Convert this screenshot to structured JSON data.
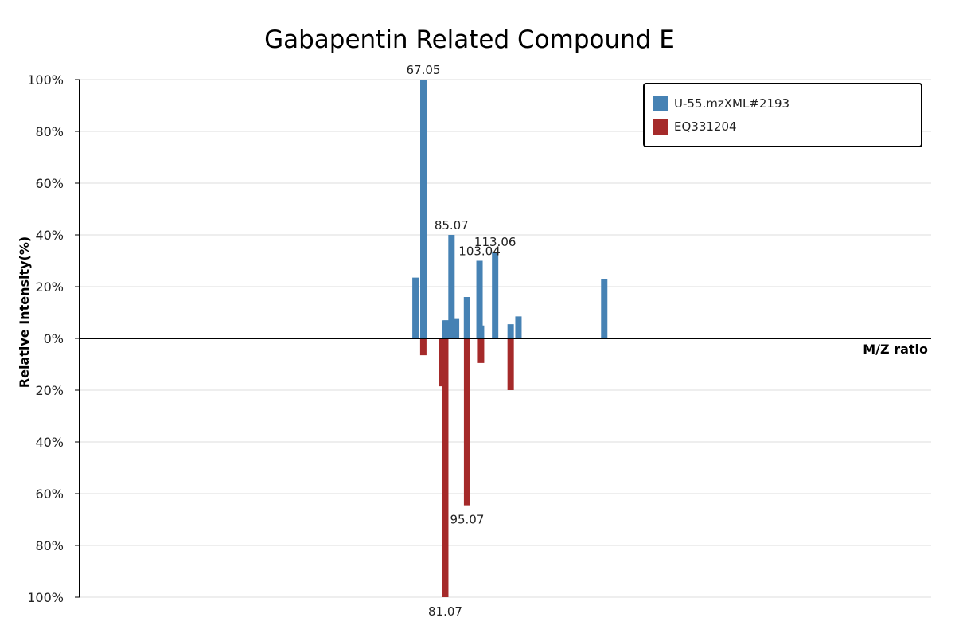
{
  "chart_data": {
    "type": "bar",
    "title": "Gabapentin Related Compound E",
    "xlabel": "M/Z ratio",
    "ylabel": "Relative Intensity(%)",
    "ylim": [
      -100,
      100
    ],
    "yticks": [
      100,
      80,
      60,
      40,
      20,
      0,
      20,
      40,
      60,
      80,
      100
    ],
    "ytick_labels": [
      "100%",
      "80%",
      "60%",
      "40%",
      "20%",
      "0%",
      "20%",
      "40%",
      "60%",
      "80%",
      "100%"
    ],
    "grid": true,
    "legend_position": "top-right",
    "series": [
      {
        "name": "U-55.mzXML#2193",
        "color": "#4682b4",
        "direction": "up",
        "x": [
          62.0,
          67.05,
          81.0,
          82.0,
          85.07,
          88.0,
          95.0,
          103.04,
          104.0,
          113.06,
          123.0,
          128.0,
          183.0
        ],
        "values": [
          23.5,
          100,
          7,
          7,
          40,
          7.5,
          16,
          30,
          5,
          33.5,
          5.5,
          8.5,
          23
        ],
        "labels": [
          "",
          "67.05",
          "",
          "",
          "85.07",
          "",
          "",
          "103.04",
          "",
          "113.06",
          "",
          "",
          ""
        ]
      },
      {
        "name": "EQ331204",
        "color": "#a52a2a",
        "direction": "down",
        "x": [
          67.0,
          79.0,
          81.07,
          95.07,
          104.0,
          123.0
        ],
        "values": [
          6.5,
          18.5,
          100,
          64.5,
          9.5,
          20
        ],
        "labels": [
          "",
          "",
          "81.07",
          "95.07",
          "",
          ""
        ]
      }
    ]
  }
}
